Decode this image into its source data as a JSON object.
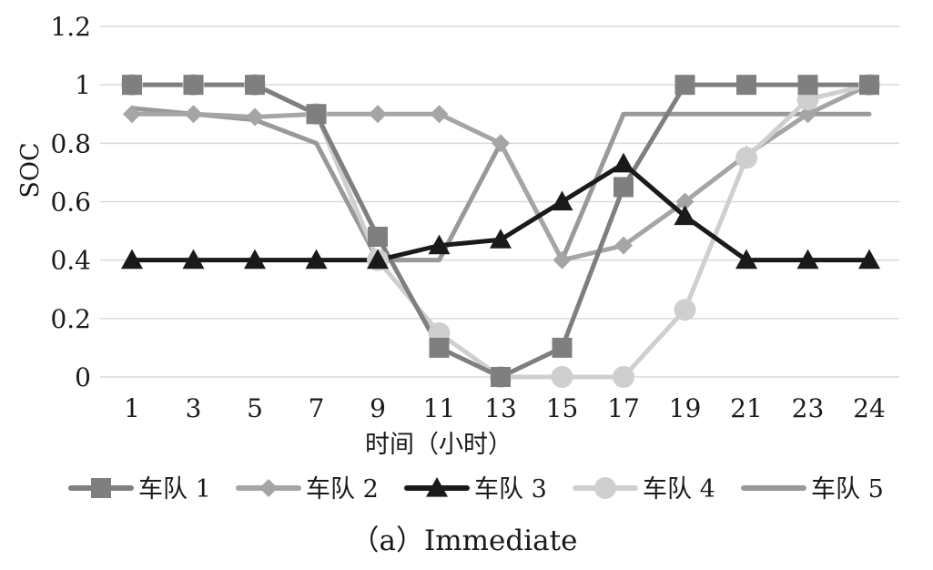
{
  "chart_data": {
    "type": "line",
    "x": [
      "1",
      "3",
      "5",
      "7",
      "9",
      "11",
      "13",
      "15",
      "17",
      "19",
      "21",
      "23",
      "24"
    ],
    "xlabel": "时间（小时）",
    "ylabel": "SOC",
    "ylim": [
      0,
      1.2
    ],
    "yticks": [
      "0",
      "0.2",
      "0.4",
      "0.6",
      "0.8",
      "1",
      "1.2"
    ],
    "grid": true,
    "legend_position": "bottom",
    "caption": "（a）Immediate",
    "series": [
      {
        "name": "车队 1",
        "marker": "square",
        "color": "#7f7f7f",
        "values": [
          1,
          1,
          1,
          0.9,
          0.48,
          0.1,
          0,
          0.1,
          0.65,
          1,
          1,
          1,
          1
        ]
      },
      {
        "name": "车队 2",
        "marker": "diamond",
        "color": "#a5a5a5",
        "values": [
          0.9,
          0.9,
          0.89,
          0.9,
          0.9,
          0.9,
          0.8,
          0.4,
          0.45,
          0.6,
          0.76,
          0.9,
          1
        ]
      },
      {
        "name": "车队 3",
        "marker": "triangle",
        "color": "#1a1a1a",
        "values": [
          0.4,
          0.4,
          0.4,
          0.4,
          0.4,
          0.45,
          0.47,
          0.6,
          0.73,
          0.55,
          0.4,
          0.4,
          0.4
        ]
      },
      {
        "name": "车队 4",
        "marker": "circle",
        "color": "#cfcfcf",
        "values": [
          1,
          1,
          1,
          0.9,
          0.4,
          0.15,
          0,
          0,
          0,
          0.23,
          0.75,
          0.95,
          1
        ]
      },
      {
        "name": "车队 5",
        "marker": "none",
        "color": "#999999",
        "values": [
          0.92,
          0.9,
          0.88,
          0.8,
          0.4,
          0.4,
          0.8,
          0.4,
          0.9,
          0.9,
          0.9,
          0.9,
          0.9
        ]
      }
    ]
  }
}
